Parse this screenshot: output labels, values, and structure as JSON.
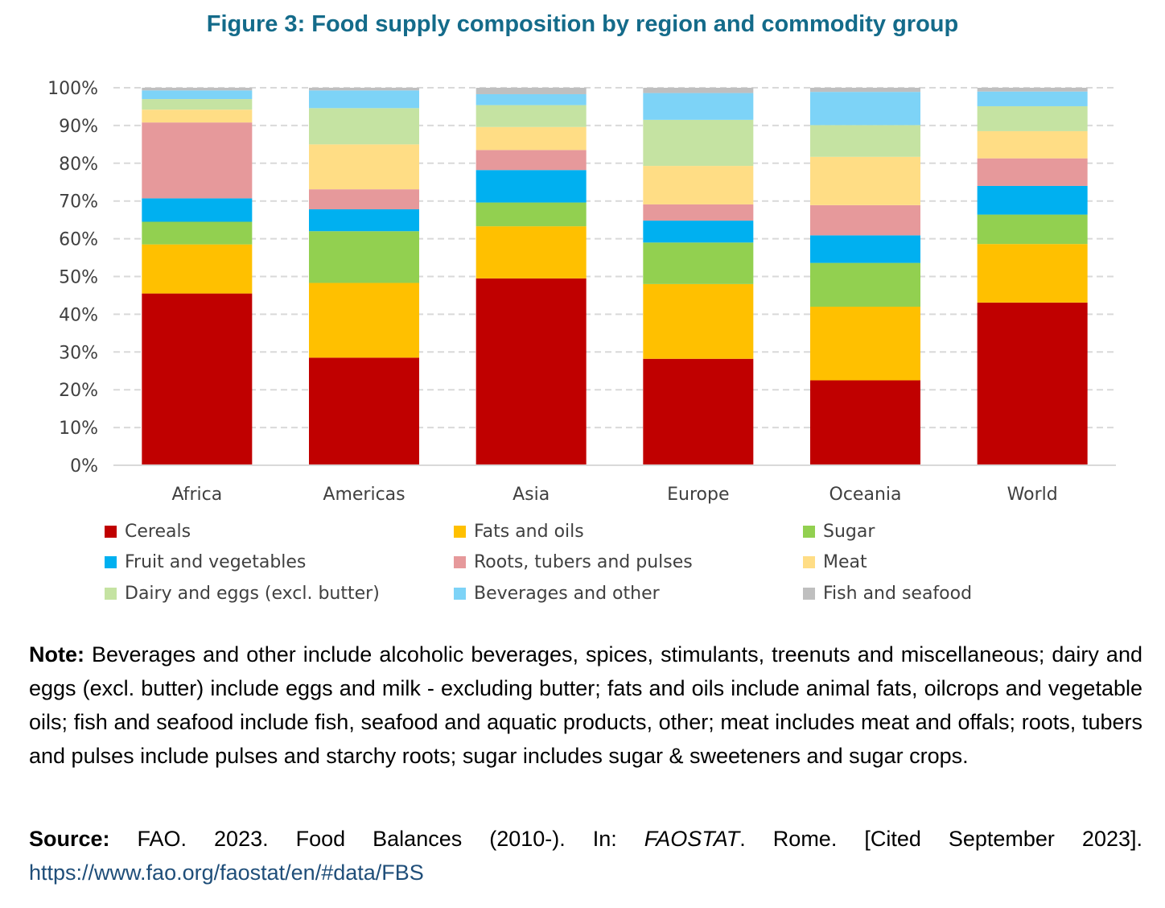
{
  "title": "Figure 3: Food supply composition by region and commodity group",
  "chart_data": {
    "type": "bar",
    "stacked": true,
    "categories": [
      "Africa",
      "Americas",
      "Asia",
      "Europe",
      "Oceania",
      "World"
    ],
    "y_ticks": [
      "0%",
      "10%",
      "20%",
      "30%",
      "40%",
      "50%",
      "60%",
      "70%",
      "80%",
      "90%",
      "100%"
    ],
    "ylim": [
      0,
      100
    ],
    "grid": true,
    "legend_position": "bottom",
    "series": [
      {
        "name": "Cereals",
        "color": "#c00000",
        "values": [
          45.5,
          28.5,
          49.5,
          28.2,
          22.5,
          43.1
        ]
      },
      {
        "name": "Fats and oils",
        "color": "#ffc000",
        "values": [
          13.0,
          19.8,
          13.8,
          19.8,
          19.5,
          15.5
        ]
      },
      {
        "name": "Sugar",
        "color": "#92d050",
        "values": [
          6.0,
          13.7,
          6.3,
          11.0,
          11.6,
          7.8
        ]
      },
      {
        "name": "Fruit and vegetables",
        "color": "#00b0f0",
        "values": [
          6.2,
          5.8,
          8.6,
          5.8,
          7.3,
          7.6
        ]
      },
      {
        "name": "Roots, tubers and pulses",
        "color": "#e6999b",
        "values": [
          20.1,
          5.3,
          5.3,
          4.3,
          8.0,
          7.3
        ]
      },
      {
        "name": "Meat",
        "color": "#ffdd85",
        "values": [
          3.4,
          11.9,
          6.1,
          10.2,
          12.8,
          7.2
        ]
      },
      {
        "name": "Dairy and eggs (excl. butter)",
        "color": "#c5e3a2",
        "values": [
          2.8,
          9.6,
          5.8,
          12.2,
          8.4,
          6.6
        ]
      },
      {
        "name": "Beverages and other",
        "color": "#7dd3f7",
        "values": [
          2.3,
          4.7,
          2.9,
          7.1,
          8.8,
          3.9
        ]
      },
      {
        "name": "Fish and seafood",
        "color": "#bfbfbf",
        "values": [
          0.7,
          0.7,
          1.7,
          1.4,
          1.1,
          1.0
        ]
      }
    ]
  },
  "note": {
    "label": "Note:",
    "text": " Beverages and other include alcoholic beverages, spices, stimulants, treenuts and miscellaneous; dairy and eggs (excl. butter) include eggs and milk - excluding butter; fats and oils include animal fats, oilcrops and vegetable oils; fish and seafood include fish, seafood and aquatic products, other; meat includes meat and offals; roots, tubers and pulses include pulses and starchy roots; sugar includes sugar & sweeteners and sugar crops."
  },
  "source": {
    "label": "Source:",
    "text_before": " FAO. 2023. Food Balances (2010-). In: ",
    "italic": "FAOSTAT",
    "text_after": ". Rome. [Cited September 2023]. ",
    "url": "https://www.fao.org/faostat/en/#data/FBS"
  }
}
